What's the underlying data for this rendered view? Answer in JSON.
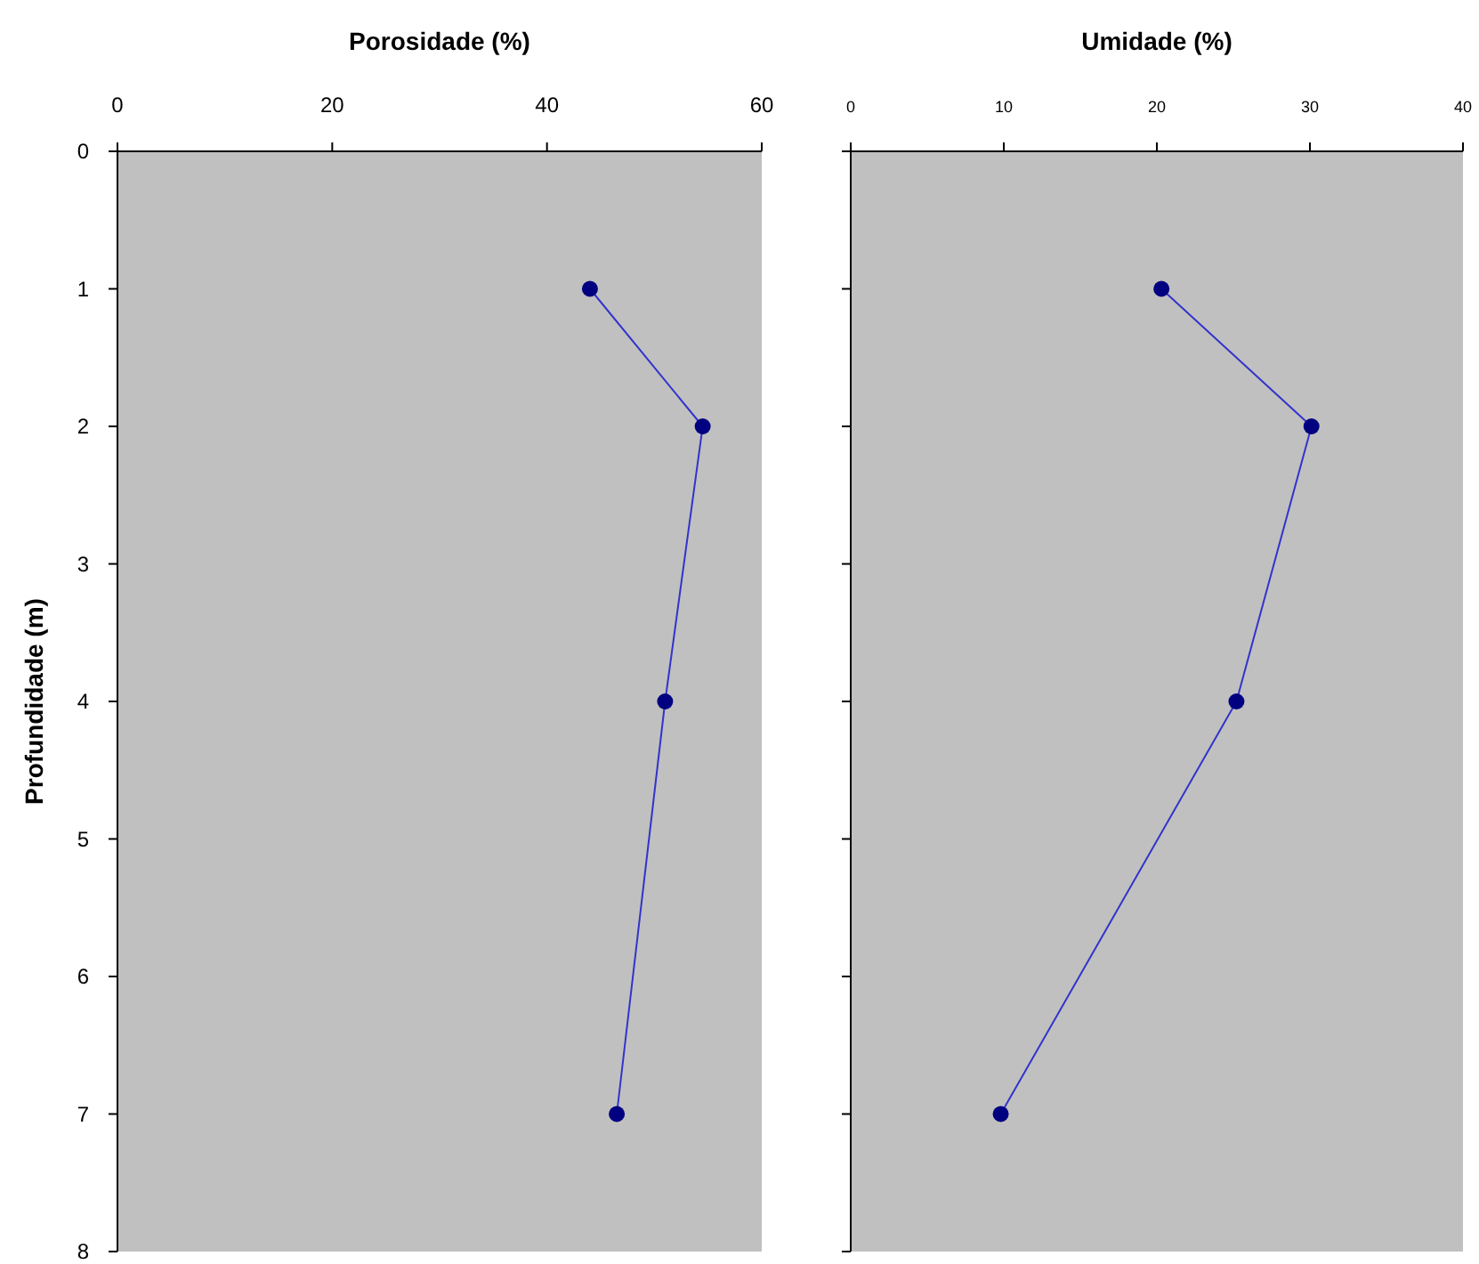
{
  "chart_data": [
    {
      "type": "line",
      "xlabel": "Porosidade (%)",
      "ylabel": "Profundidade (m)",
      "xlim": [
        0,
        60
      ],
      "xticks": [
        0,
        20,
        40,
        60
      ],
      "ylim": [
        8,
        0
      ],
      "yticks": [
        0,
        1,
        2,
        3,
        4,
        5,
        6,
        7,
        8
      ],
      "marker": "circle",
      "grid": false,
      "series": [
        {
          "color": "#000080",
          "x": [
            44,
            54.5,
            51,
            46.5
          ],
          "values": [
            1,
            2,
            4,
            7
          ]
        }
      ]
    },
    {
      "type": "line",
      "xlabel": "Umidade (%)",
      "xlim": [
        0,
        40
      ],
      "xticks": [
        0,
        10,
        20,
        30,
        40
      ],
      "ylim": [
        8,
        0
      ],
      "yticks": [
        0,
        1,
        2,
        3,
        4,
        5,
        6,
        7,
        8
      ],
      "tick_labels": "x",
      "marker": "circle",
      "grid": false,
      "series": [
        {
          "color": "#000080",
          "x": [
            20.3,
            30.1,
            25.2,
            9.8
          ],
          "values": [
            1,
            2,
            4,
            7
          ]
        }
      ]
    }
  ]
}
